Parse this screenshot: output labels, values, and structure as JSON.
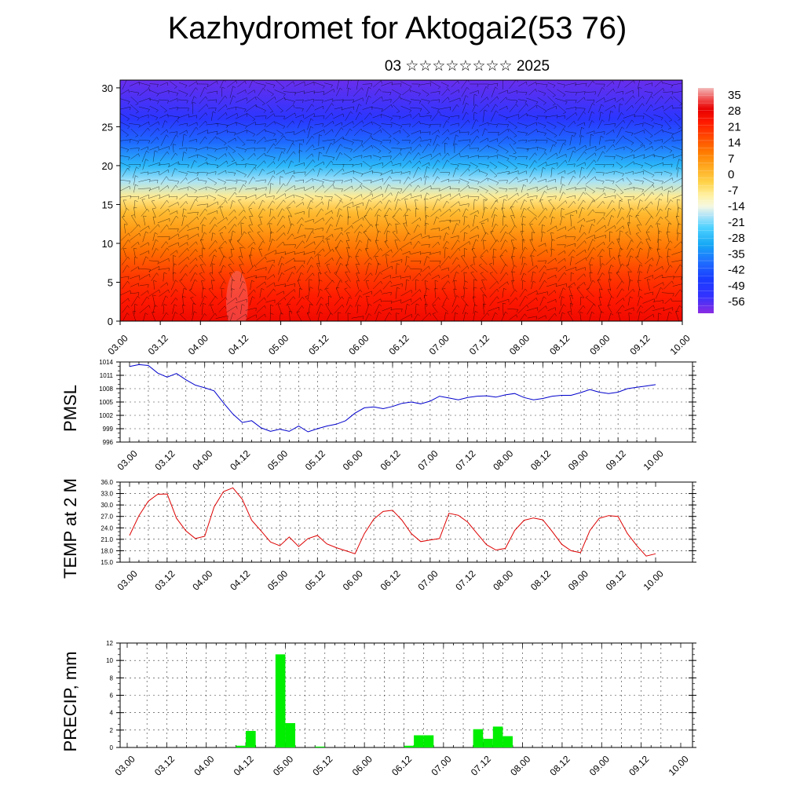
{
  "header": {
    "title": "Kazhydromet for Aktogai2(53 76)",
    "subtitle": "03 ☆☆☆☆☆☆☆☆ 2025"
  },
  "time_axis_labels": [
    "03.00",
    "03.12",
    "04.00",
    "04.12",
    "05.00",
    "05.12",
    "06.00",
    "06.12",
    "07.00",
    "07.12",
    "08.00",
    "08.12",
    "09.00",
    "09.12",
    "10.00"
  ],
  "chart_data": [
    {
      "type": "heatmap",
      "title": "",
      "xlabel": "",
      "ylabel": "",
      "ylim": [
        0,
        31
      ],
      "yticks": [
        0,
        5,
        10,
        15,
        20,
        25,
        30
      ],
      "xticks": [
        "03.00",
        "03.12",
        "04.00",
        "04.12",
        "05.00",
        "05.12",
        "06.00",
        "06.12",
        "07.00",
        "07.12",
        "08.00",
        "08.12",
        "09.00",
        "09.12",
        "10.00"
      ],
      "colorbar_labels": [
        "35",
        "28",
        "21",
        "14",
        "7",
        "0",
        "-7",
        "-14",
        "-21",
        "-28",
        "-35",
        "-42",
        "-49",
        "-56"
      ],
      "colorbar_range": [
        -63,
        42
      ],
      "overlay": "wind barbs",
      "levels_temperature": [
        {
          "level": 0,
          "t": 30
        },
        {
          "level": 3,
          "t": 26
        },
        {
          "level": 6,
          "t": 21
        },
        {
          "level": 9,
          "t": 14
        },
        {
          "level": 12,
          "t": 7
        },
        {
          "level": 14,
          "t": 2
        },
        {
          "level": 16,
          "t": -7
        },
        {
          "level": 18,
          "t": -18
        },
        {
          "level": 20,
          "t": -28
        },
        {
          "level": 23,
          "t": -40
        },
        {
          "level": 26,
          "t": -52
        },
        {
          "level": 31,
          "t": -60
        }
      ]
    },
    {
      "type": "line",
      "ylabel": "PMSL",
      "ylim": [
        996,
        1014
      ],
      "yticks": [
        "996",
        "999",
        "1002",
        "1005",
        "1008",
        "1011",
        "1014"
      ],
      "x_unit": "hours from 03.00 (6-hour steps)",
      "series": [
        {
          "name": "",
          "color": "#0000cc",
          "values": [
            1013.0,
            1013.4,
            1013.2,
            1011.5,
            1010.6,
            1011.4,
            1010.0,
            1008.8,
            1008.2,
            1007.5,
            1004.8,
            1002.3,
            1000.4,
            1000.8,
            999.2,
            998.4,
            998.9,
            998.4,
            999.6,
            998.3,
            999.0,
            999.6,
            1000.0,
            1000.8,
            1002.5,
            1003.7,
            1003.9,
            1003.5,
            1004.0,
            1004.7,
            1005.0,
            1004.6,
            1005.2,
            1006.3,
            1005.9,
            1005.5,
            1006.0,
            1006.3,
            1006.4,
            1006.1,
            1006.6,
            1006.9,
            1006.0,
            1005.5,
            1005.8,
            1006.3,
            1006.5,
            1006.5,
            1007.1,
            1007.8,
            1007.2,
            1006.9,
            1007.2,
            1008.0,
            1008.3,
            1008.6,
            1008.9
          ]
        }
      ]
    },
    {
      "type": "line",
      "ylabel": "TEMP at 2 M",
      "ylim": [
        15,
        36
      ],
      "yticks": [
        "15.0",
        "18.0",
        "21.0",
        "24.0",
        "27.0",
        "30.0",
        "33.0",
        "36.0"
      ],
      "series": [
        {
          "name": "",
          "color": "#dd0000",
          "values": [
            22.0,
            27.2,
            31.0,
            32.8,
            32.9,
            26.5,
            23.2,
            21.2,
            21.8,
            29.5,
            33.5,
            34.5,
            31.5,
            26.0,
            23.2,
            20.3,
            19.3,
            21.6,
            19.1,
            21.2,
            22.0,
            19.8,
            18.8,
            18.0,
            17.2,
            22.5,
            26.3,
            28.3,
            28.6,
            26.0,
            22.5,
            20.4,
            20.8,
            21.2,
            27.8,
            27.3,
            25.5,
            22.5,
            19.6,
            18.2,
            18.6,
            23.3,
            26.0,
            26.6,
            26.1,
            23.0,
            19.7,
            18.0,
            17.5,
            23.3,
            26.5,
            27.2,
            27.0,
            22.5,
            19.3,
            16.6,
            17.2
          ]
        }
      ]
    },
    {
      "type": "bar",
      "ylabel": "PRECIP, mm",
      "ylim": [
        0,
        12
      ],
      "yticks": [
        "0",
        "2",
        "4",
        "6",
        "8",
        "10",
        "12"
      ],
      "bar_color": "#00ee00",
      "bars": [
        {
          "start": 33,
          "end": 36,
          "value": 0.2
        },
        {
          "start": 36,
          "end": 39,
          "value": 1.9
        },
        {
          "start": 45,
          "end": 48,
          "value": 10.7
        },
        {
          "start": 48,
          "end": 51,
          "value": 2.8
        },
        {
          "start": 57,
          "end": 60,
          "value": 0.1
        },
        {
          "start": 84,
          "end": 87,
          "value": 0.2
        },
        {
          "start": 87,
          "end": 90,
          "value": 1.4
        },
        {
          "start": 90,
          "end": 93,
          "value": 1.4
        },
        {
          "start": 105,
          "end": 108,
          "value": 2.1
        },
        {
          "start": 108,
          "end": 111,
          "value": 1.0
        },
        {
          "start": 111,
          "end": 114,
          "value": 2.4
        },
        {
          "start": 114,
          "end": 117,
          "value": 1.3
        }
      ]
    }
  ]
}
